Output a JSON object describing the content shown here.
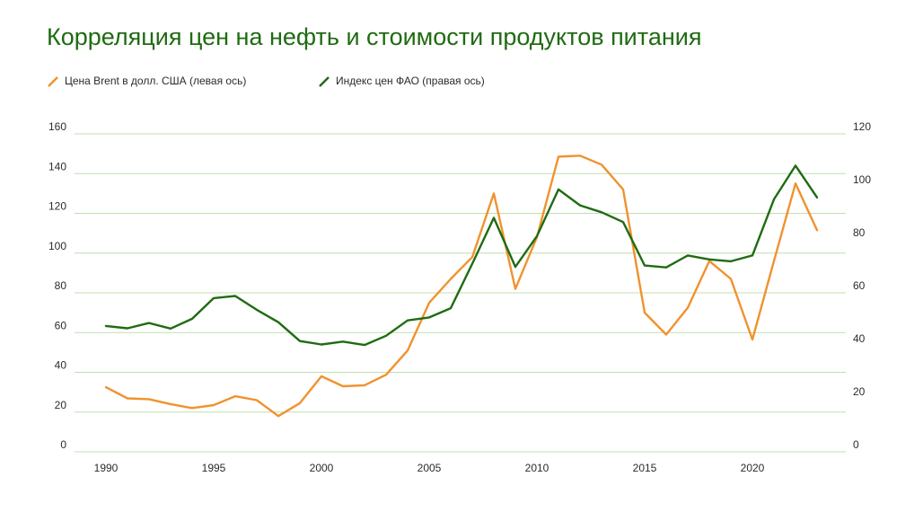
{
  "chart_data": {
    "type": "line",
    "title": "Корреляция цен на нефть и стоимости продуктов питания",
    "x": [
      1990,
      1991,
      1992,
      1993,
      1994,
      1995,
      1996,
      1997,
      1998,
      1999,
      2000,
      2001,
      2002,
      2003,
      2004,
      2005,
      2006,
      2007,
      2008,
      2009,
      2010,
      2011,
      2012,
      2013,
      2014,
      2015,
      2016,
      2017,
      2018,
      2019,
      2020,
      2021,
      2022,
      2023
    ],
    "x_ticks": [
      "1990",
      "1995",
      "2000",
      "2005",
      "2010",
      "2015",
      "2020"
    ],
    "y_left_ticks": [
      "0",
      "20",
      "40",
      "60",
      "80",
      "100",
      "120",
      "140",
      "160"
    ],
    "y_right_ticks": [
      "0",
      "20",
      "40",
      "60",
      "80",
      "100",
      "120"
    ],
    "ylim_left": [
      0,
      160
    ],
    "ylim_right": [
      0,
      120
    ],
    "grid": true,
    "legend_position": "top-left",
    "series": [
      {
        "name": "Цена Brent в долл. США (левая ось)",
        "axis": "left",
        "color": "#f0922e",
        "values": [
          32.5,
          26.9,
          26.5,
          24.0,
          22.0,
          23.5,
          28.0,
          26.0,
          18.0,
          24.5,
          38.0,
          33.0,
          33.5,
          38.8,
          51.0,
          75.0,
          87.0,
          98.0,
          130.0,
          82.0,
          108.0,
          148.5,
          149.0,
          144.5,
          132.0,
          70.0,
          59.0,
          72.5,
          96.0,
          87.0,
          56.5,
          96.0,
          135.0,
          111.5
        ]
      },
      {
        "name": "Индекс цен ФАО (правая ось)",
        "axis": "right",
        "color": "#1f6b12",
        "values": [
          47.5,
          46.6,
          48.6,
          46.5,
          50.2,
          58.0,
          58.8,
          53.6,
          48.9,
          41.8,
          40.5,
          41.6,
          40.3,
          43.8,
          49.6,
          50.7,
          54.2,
          71.0,
          88.3,
          69.8,
          81.4,
          99.0,
          93.0,
          90.4,
          86.7,
          70.3,
          69.6,
          74.1,
          72.6,
          71.9,
          74.1,
          95.3,
          108.0,
          96.0
        ]
      }
    ]
  }
}
